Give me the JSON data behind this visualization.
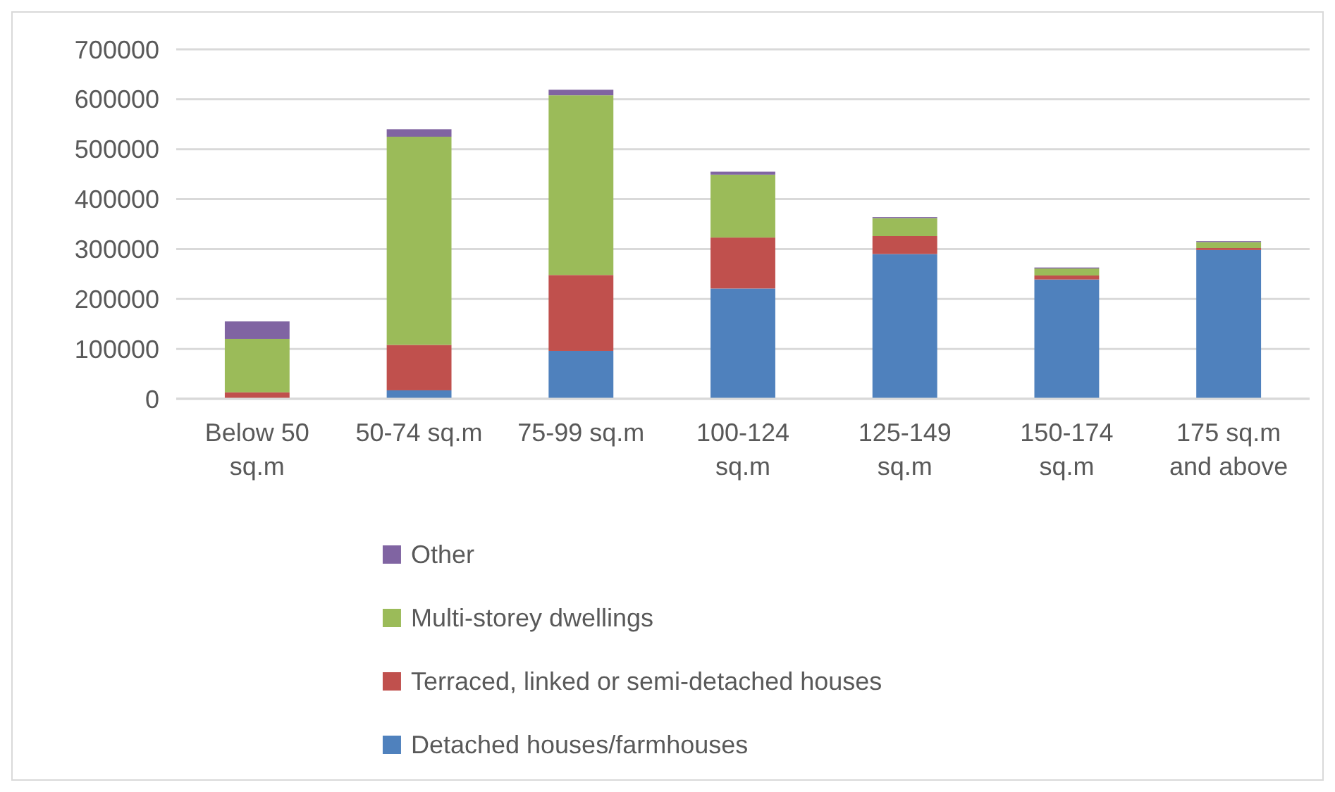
{
  "chart_data": {
    "type": "bar",
    "stacked": true,
    "categories": [
      "Below 50 sq.m",
      "50-74 sq.m",
      "75-99 sq.m",
      "100-124 sq.m",
      "125-149 sq.m",
      "150-174 sq.m",
      "175 sq.m and above"
    ],
    "series": [
      {
        "name": "Detached houses/farmhouses",
        "color": "#4f81bd",
        "values": [
          0,
          17000,
          96000,
          221000,
          290000,
          239000,
          298000
        ]
      },
      {
        "name": "Terraced, linked or semi-detached houses",
        "color": "#c0504d",
        "values": [
          13000,
          91000,
          152000,
          102000,
          36000,
          8000,
          4000
        ]
      },
      {
        "name": "Multi-storey dwellings",
        "color": "#9bbb59",
        "values": [
          107000,
          417000,
          360000,
          126000,
          36000,
          14000,
          12000
        ]
      },
      {
        "name": "Other",
        "color": "#8064a2",
        "values": [
          35000,
          15000,
          11000,
          6000,
          2000,
          2000,
          2000
        ]
      }
    ],
    "ylim": [
      0,
      700000
    ],
    "yticks": [
      0,
      100000,
      200000,
      300000,
      400000,
      500000,
      600000,
      700000
    ],
    "grid": "y",
    "legend": "bottom"
  }
}
